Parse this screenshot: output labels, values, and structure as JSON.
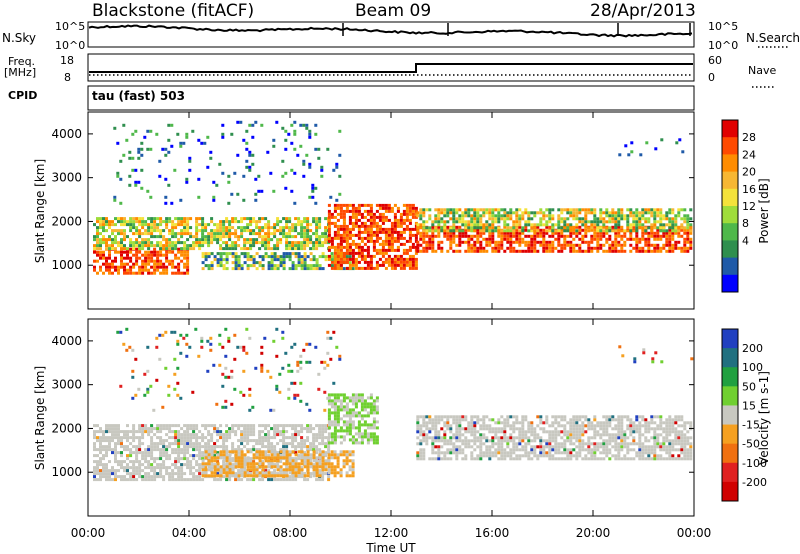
{
  "header": {
    "station": "Blackstone (fitACF)",
    "beam": "Beam 09",
    "date": "28/Apr/2013"
  },
  "noise_panel": {
    "left_label": "N.Sky",
    "right_label": "N.Search",
    "left_ticks": [
      "10^5",
      "10^0"
    ],
    "right_ticks": [
      "10^5",
      "10^0"
    ]
  },
  "freq_panel": {
    "left_label_line1": "Freq.",
    "left_label_line2": "[MHz]",
    "right_label": "Nave",
    "left_ticks": [
      "18",
      "8"
    ],
    "right_ticks": [
      "60",
      "0"
    ],
    "cpid_label": "CPID",
    "cpid_text": "tau (fast) 503"
  },
  "chart_data": [
    {
      "type": "heatmap",
      "title": "",
      "xlabel": "Time UT",
      "ylabel": "Slant Range [km]",
      "x_ticks": [
        "00:00",
        "04:00",
        "08:00",
        "12:00",
        "16:00",
        "20:00",
        "00:00"
      ],
      "y_ticks": [
        "1000",
        "2000",
        "3000",
        "4000"
      ],
      "ylim": [
        0,
        4500
      ],
      "xlim_hours": [
        0,
        24
      ],
      "colorbar": {
        "label": "Power [dB]",
        "ticks": [
          "28",
          "24",
          "20",
          "16",
          "12",
          "8",
          "4"
        ],
        "colors": [
          "#e00000",
          "#ff4a00",
          "#ff8c00",
          "#f7b733",
          "#f4e23a",
          "#9fdc3a",
          "#4fb84a",
          "#2f8f4e",
          "#1f5aa8",
          "#0000ff"
        ]
      },
      "bands": [
        {
          "start_h": 0.2,
          "end_h": 4.0,
          "range_lo": 850,
          "range_hi": 1400,
          "level": "high"
        },
        {
          "start_h": 0.2,
          "end_h": 9.5,
          "range_lo": 1400,
          "range_hi": 2100,
          "level": "mid"
        },
        {
          "start_h": 4.5,
          "end_h": 10.5,
          "range_lo": 900,
          "range_hi": 1300,
          "level": "low"
        },
        {
          "start_h": 9.5,
          "end_h": 13.0,
          "range_lo": 900,
          "range_hi": 2400,
          "level": "high"
        },
        {
          "start_h": 13.0,
          "end_h": 23.9,
          "range_lo": 1300,
          "range_hi": 1900,
          "level": "high"
        },
        {
          "start_h": 13.0,
          "end_h": 23.9,
          "range_lo": 1800,
          "range_hi": 2300,
          "level": "mid"
        },
        {
          "start_h": 1.0,
          "end_h": 10.0,
          "range_lo": 2400,
          "range_hi": 4300,
          "level": "sparse"
        },
        {
          "start_h": 21.0,
          "end_h": 23.9,
          "range_lo": 3500,
          "range_hi": 3900,
          "level": "sparse"
        }
      ]
    },
    {
      "type": "heatmap",
      "title": "",
      "xlabel": "Time UT",
      "ylabel": "Slant Range [km]",
      "x_ticks": [
        "00:00",
        "04:00",
        "08:00",
        "12:00",
        "16:00",
        "20:00",
        "00:00"
      ],
      "y_ticks": [
        "1000",
        "2000",
        "3000",
        "4000"
      ],
      "ylim": [
        0,
        4500
      ],
      "xlim_hours": [
        0,
        24
      ],
      "colorbar": {
        "label": "Velocity [m s-1]",
        "ticks": [
          "200",
          "100",
          "50",
          "15",
          "-15",
          "-50",
          "-100",
          "-200"
        ],
        "colors": [
          "#2040c0",
          "#207080",
          "#20a040",
          "#70d030",
          "#c8c8c0",
          "#f5a020",
          "#f07010",
          "#e02020",
          "#d00000"
        ]
      },
      "bands": [
        {
          "start_h": 0.2,
          "end_h": 9.5,
          "range_lo": 850,
          "range_hi": 2100,
          "level": "gray"
        },
        {
          "start_h": 4.5,
          "end_h": 10.5,
          "range_lo": 900,
          "range_hi": 1500,
          "level": "orange"
        },
        {
          "start_h": 9.5,
          "end_h": 11.5,
          "range_lo": 1700,
          "range_hi": 2800,
          "level": "green"
        },
        {
          "start_h": 13.0,
          "end_h": 23.9,
          "range_lo": 1300,
          "range_hi": 2300,
          "level": "gray"
        },
        {
          "start_h": 1.0,
          "end_h": 10.0,
          "range_lo": 2400,
          "range_hi": 4300,
          "level": "sparse"
        },
        {
          "start_h": 21.0,
          "end_h": 23.9,
          "range_lo": 3500,
          "range_hi": 3900,
          "level": "sparse"
        }
      ]
    }
  ]
}
